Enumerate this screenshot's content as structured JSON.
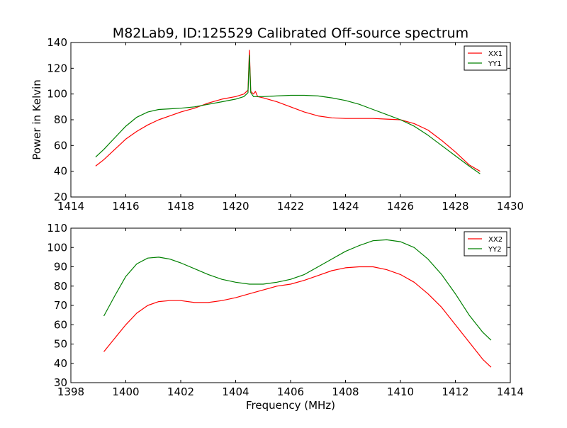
{
  "chart_data": [
    {
      "type": "line",
      "title": "M82Lab9, ID:125529 Calibrated Off-source spectrum",
      "xlabel": "",
      "ylabel": "Power in Kelvin",
      "xlim": [
        1414,
        1430
      ],
      "ylim": [
        20,
        140
      ],
      "xticks": [
        1414,
        1416,
        1418,
        1420,
        1422,
        1424,
        1426,
        1428,
        1430
      ],
      "yticks": [
        20,
        40,
        60,
        80,
        100,
        120,
        140
      ],
      "legend_position": "top-right",
      "series": [
        {
          "name": "XX1",
          "color": "#ff0000",
          "x": [
            1414.9,
            1415.2,
            1415.6,
            1416.0,
            1416.4,
            1416.8,
            1417.2,
            1417.6,
            1418.0,
            1418.5,
            1419.0,
            1419.5,
            1420.0,
            1420.3,
            1420.45,
            1420.5,
            1420.55,
            1420.65,
            1420.72,
            1420.8,
            1421.0,
            1421.5,
            1422.0,
            1422.5,
            1423.0,
            1423.5,
            1424.0,
            1424.5,
            1425.0,
            1425.5,
            1426.0,
            1426.5,
            1427.0,
            1427.5,
            1428.0,
            1428.5,
            1428.9
          ],
          "y": [
            44,
            49,
            57,
            65,
            71,
            76,
            80,
            83,
            86,
            89,
            93,
            96,
            98,
            100,
            103,
            134,
            102,
            100,
            102,
            98,
            97,
            94,
            90,
            86,
            83,
            81.5,
            81,
            81,
            81,
            80.5,
            80,
            77,
            72,
            64,
            55,
            45,
            40
          ]
        },
        {
          "name": "YY1",
          "color": "#008000",
          "x": [
            1414.9,
            1415.2,
            1415.6,
            1416.0,
            1416.4,
            1416.8,
            1417.2,
            1417.6,
            1418.0,
            1418.5,
            1419.0,
            1419.5,
            1420.0,
            1420.3,
            1420.45,
            1420.5,
            1420.55,
            1420.65,
            1420.8,
            1421.0,
            1421.5,
            1422.0,
            1422.5,
            1423.0,
            1423.5,
            1424.0,
            1424.5,
            1425.0,
            1425.5,
            1426.0,
            1426.5,
            1427.0,
            1427.5,
            1428.0,
            1428.5,
            1428.9
          ],
          "y": [
            51,
            57,
            66,
            75,
            82,
            86,
            88,
            88.5,
            89,
            90,
            92,
            94,
            96,
            98,
            101,
            130,
            101,
            98,
            98,
            98,
            98.5,
            99,
            99,
            98.5,
            97,
            95,
            92,
            88,
            84,
            80,
            75,
            68,
            60,
            52,
            44,
            38
          ]
        }
      ]
    },
    {
      "type": "line",
      "title": "",
      "xlabel": "Frequency (MHz)",
      "ylabel": "",
      "xlim": [
        1398,
        1414
      ],
      "ylim": [
        30,
        110
      ],
      "xticks": [
        1398,
        1400,
        1402,
        1404,
        1406,
        1408,
        1410,
        1412,
        1414
      ],
      "yticks": [
        30,
        40,
        50,
        60,
        70,
        80,
        90,
        100,
        110
      ],
      "legend_position": "top-right",
      "series": [
        {
          "name": "XX2",
          "color": "#ff0000",
          "x": [
            1399.2,
            1399.6,
            1400.0,
            1400.4,
            1400.8,
            1401.2,
            1401.6,
            1402.0,
            1402.5,
            1403.0,
            1403.5,
            1404.0,
            1404.5,
            1405.0,
            1405.5,
            1406.0,
            1406.5,
            1407.0,
            1407.5,
            1408.0,
            1408.5,
            1409.0,
            1409.5,
            1410.0,
            1410.5,
            1411.0,
            1411.5,
            1412.0,
            1412.5,
            1413.0,
            1413.3
          ],
          "y": [
            46,
            53,
            60,
            66,
            70,
            72,
            72.5,
            72.5,
            71.5,
            71.5,
            72.5,
            74,
            76,
            78,
            80,
            81,
            83,
            85.5,
            88,
            89.5,
            90,
            90,
            88.5,
            86,
            82,
            76,
            69,
            60,
            51,
            42,
            38
          ]
        },
        {
          "name": "YY2",
          "color": "#008000",
          "x": [
            1399.2,
            1399.6,
            1400.0,
            1400.4,
            1400.8,
            1401.2,
            1401.6,
            1402.0,
            1402.5,
            1403.0,
            1403.5,
            1404.0,
            1404.5,
            1405.0,
            1405.5,
            1406.0,
            1406.5,
            1407.0,
            1407.5,
            1408.0,
            1408.5,
            1409.0,
            1409.5,
            1410.0,
            1410.5,
            1411.0,
            1411.5,
            1412.0,
            1412.5,
            1413.0,
            1413.3
          ],
          "y": [
            64.5,
            75,
            85,
            91.5,
            94.5,
            95,
            94,
            92,
            89,
            86,
            83.5,
            82,
            81,
            81,
            82,
            83.5,
            86,
            90,
            94,
            98,
            101,
            103.5,
            104,
            103,
            100,
            94,
            86,
            76,
            65,
            56,
            52
          ]
        }
      ]
    }
  ]
}
